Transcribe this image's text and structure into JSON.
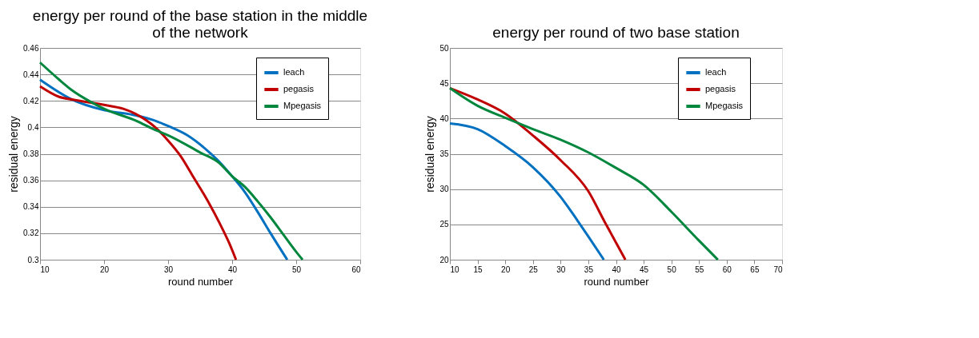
{
  "chart_data": [
    {
      "type": "line",
      "title": "energy per round of the base station in the middle of the network",
      "xlabel": "round number",
      "ylabel": "residual energy",
      "xlim": [
        10,
        60
      ],
      "xticks": [
        10,
        20,
        30,
        40,
        50,
        60
      ],
      "ylim": [
        0.3,
        0.46
      ],
      "yticks": [
        {
          "value": 0.3,
          "label": "0.3"
        },
        0.32,
        0.34,
        0.36,
        0.38,
        {
          "value": 0.4,
          "label": "0.4"
        },
        0.42,
        0.44,
        0.46
      ],
      "grid": "y",
      "legend": "top right",
      "marker": "none",
      "line_style": "solid",
      "series": [
        {
          "name": "leach",
          "color": "#0070c0",
          "x": [
            10,
            15,
            20,
            25,
            28,
            30,
            33,
            36,
            38,
            40,
            42,
            44,
            46,
            48.6
          ],
          "values": [
            0.436,
            0.421,
            0.413,
            0.409,
            0.405,
            0.401,
            0.394,
            0.383,
            0.374,
            0.363,
            0.351,
            0.336,
            0.32,
            0.3
          ]
        },
        {
          "name": "pegasis",
          "color": "#c00000",
          "x": [
            10,
            13,
            15,
            20,
            23,
            25,
            28,
            30,
            32,
            34,
            36,
            38,
            39.5,
            40.6
          ],
          "values": [
            0.431,
            0.423,
            0.421,
            0.417,
            0.414,
            0.41,
            0.4,
            0.39,
            0.378,
            0.362,
            0.346,
            0.328,
            0.313,
            0.3
          ]
        },
        {
          "name": "Mpegasis",
          "color": "#00863d",
          "x": [
            10,
            13,
            15,
            18,
            20,
            25,
            28,
            30,
            35,
            38,
            40,
            42,
            44,
            46,
            48,
            50,
            51
          ],
          "values": [
            0.449,
            0.436,
            0.428,
            0.419,
            0.414,
            0.405,
            0.398,
            0.394,
            0.381,
            0.373,
            0.363,
            0.355,
            0.344,
            0.332,
            0.319,
            0.306,
            0.3
          ]
        }
      ]
    },
    {
      "type": "line",
      "title": "energy per round of two base station",
      "xlabel": "round number",
      "ylabel": "residual energy",
      "xlim": [
        10,
        70
      ],
      "xticks": [
        10,
        15,
        20,
        25,
        30,
        35,
        40,
        45,
        50,
        55,
        60,
        65,
        70
      ],
      "ylim": [
        20,
        50
      ],
      "yticks": [
        20,
        25,
        30,
        35,
        40,
        45,
        50
      ],
      "grid": "y",
      "legend": "top right",
      "marker": "none",
      "line_style": "solid",
      "series": [
        {
          "name": "leach",
          "color": "#0070c0",
          "x": [
            10,
            15,
            20,
            25,
            30,
            33,
            35,
            37.8
          ],
          "values": [
            39.3,
            38.5,
            36.1,
            33.1,
            28.9,
            25.6,
            23.3,
            20
          ]
        },
        {
          "name": "pegasis",
          "color": "#c00000",
          "x": [
            10,
            15,
            20,
            25,
            30,
            35,
            38,
            41.7
          ],
          "values": [
            44.3,
            42.7,
            40.7,
            37.6,
            34.1,
            29.7,
            25.3,
            20
          ]
        },
        {
          "name": "Mpegasis",
          "color": "#00863d",
          "x": [
            10,
            15,
            20,
            25,
            30,
            35,
            40,
            45,
            50,
            55,
            58.4
          ],
          "values": [
            44.3,
            41.8,
            40.1,
            38.5,
            37.0,
            35.2,
            33.0,
            30.6,
            26.8,
            22.7,
            20
          ]
        }
      ]
    }
  ]
}
